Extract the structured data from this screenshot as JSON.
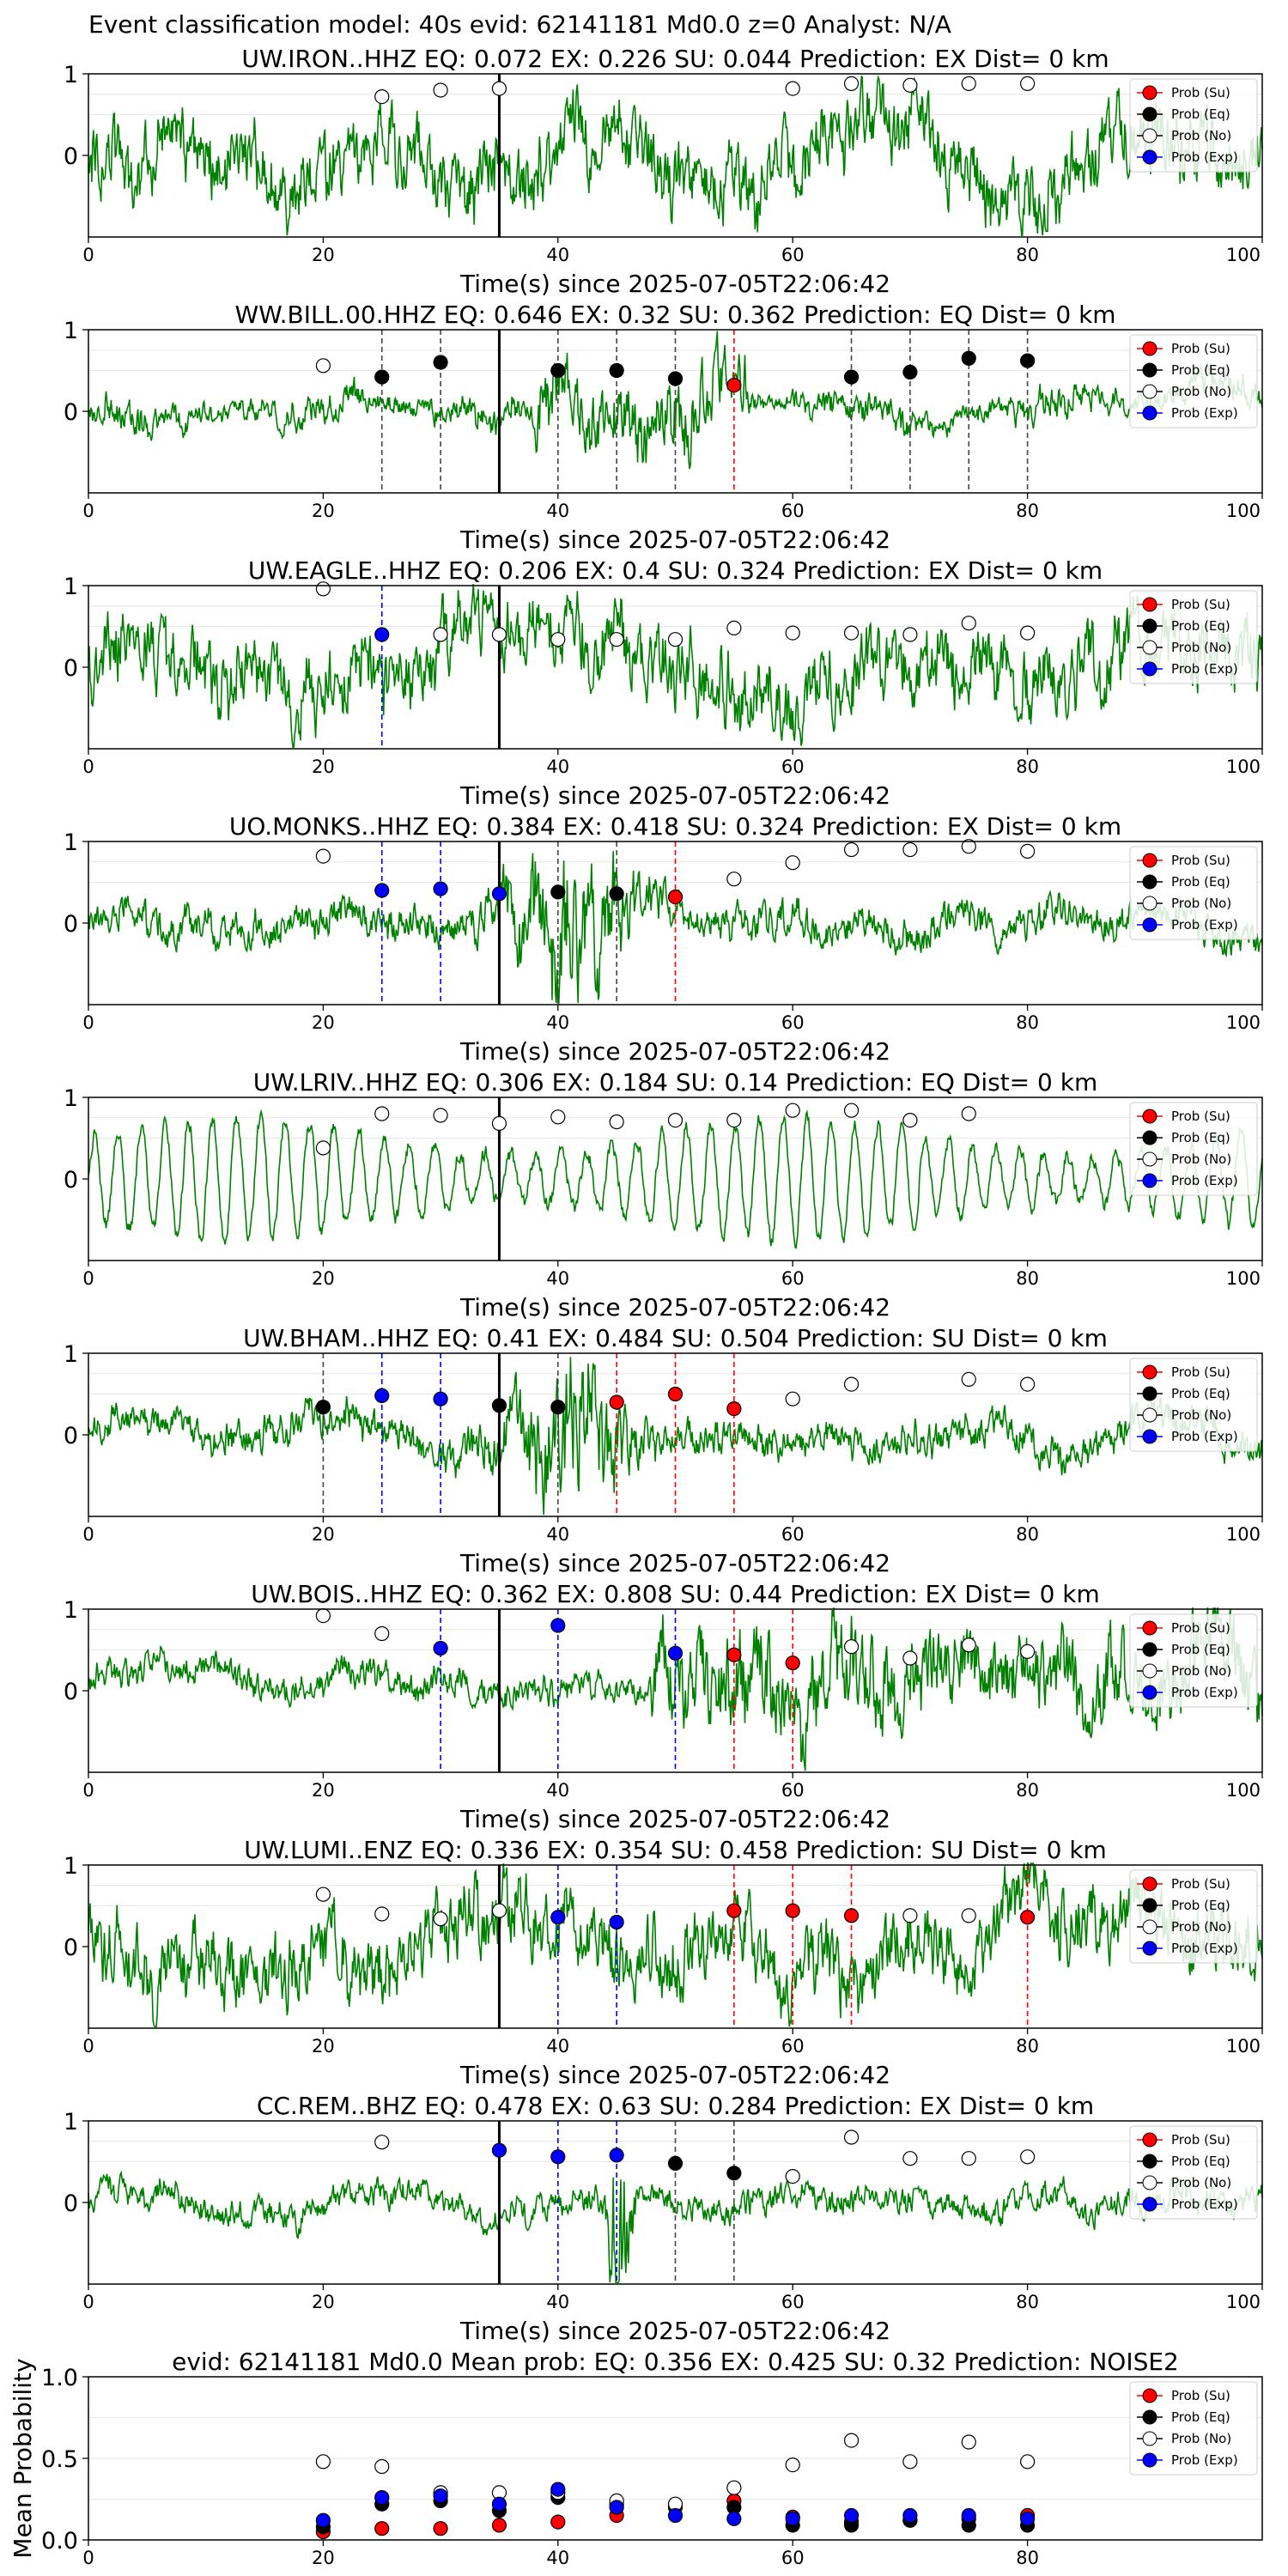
{
  "suptitle": "Event classification model: 40s evid: 62141181 Md0.0 z=0 Analyst: N/A",
  "colors": {
    "trace": "#008000",
    "su": "#ff0000",
    "eq": "#000000",
    "no": "#ffffff",
    "exp": "#0000ff",
    "pick": "#000000"
  },
  "legend": [
    "Prob (Su)",
    "Prob (Eq)",
    "Prob (No)",
    "Prob (Exp)"
  ],
  "chart_data": [
    {
      "type": "line",
      "title": "UW.IRON..HHZ   EQ: 0.072  EX: 0.226  SU: 0.044   Prediction: EX    Dist= 0 km",
      "xlabel": "Time(s) since 2025-07-05T22:06:42",
      "xlim": [
        0,
        100
      ],
      "ylim": [
        -1,
        1
      ],
      "xticks": [
        0,
        20,
        40,
        60,
        80,
        100
      ],
      "yticks": [
        0,
        1
      ],
      "pick": 35,
      "style": "noisy",
      "points": [
        {
          "x": 25,
          "c": "no",
          "y": 0.72
        },
        {
          "x": 30,
          "c": "no",
          "y": 0.8
        },
        {
          "x": 35,
          "c": "no",
          "y": 0.82
        },
        {
          "x": 60,
          "c": "no",
          "y": 0.82
        },
        {
          "x": 65,
          "c": "no",
          "y": 0.88
        },
        {
          "x": 70,
          "c": "no",
          "y": 0.86
        },
        {
          "x": 75,
          "c": "no",
          "y": 0.88
        },
        {
          "x": 80,
          "c": "no",
          "y": 0.88
        }
      ]
    },
    {
      "type": "line",
      "title": "WW.BILL.00.HHZ   EQ: 0.646  EX: 0.32  SU: 0.362   Prediction: EQ    Dist= 0 km",
      "xlabel": "Time(s) since 2025-07-05T22:06:42",
      "xlim": [
        0,
        100
      ],
      "ylim": [
        -1,
        1
      ],
      "xticks": [
        0,
        20,
        40,
        60,
        80,
        100
      ],
      "yticks": [
        0,
        1
      ],
      "pick": 35,
      "style": "quiet",
      "points": [
        {
          "x": 20,
          "c": "no",
          "y": 0.56
        },
        {
          "x": 25,
          "c": "eq",
          "y": 0.42
        },
        {
          "x": 30,
          "c": "eq",
          "y": 0.6
        },
        {
          "x": 40,
          "c": "eq",
          "y": 0.5
        },
        {
          "x": 45,
          "c": "eq",
          "y": 0.5
        },
        {
          "x": 50,
          "c": "eq",
          "y": 0.4
        },
        {
          "x": 55,
          "c": "su",
          "y": 0.32
        },
        {
          "x": 65,
          "c": "eq",
          "y": 0.42
        },
        {
          "x": 70,
          "c": "eq",
          "y": 0.48
        },
        {
          "x": 75,
          "c": "eq",
          "y": 0.65
        },
        {
          "x": 80,
          "c": "eq",
          "y": 0.62
        }
      ]
    },
    {
      "type": "line",
      "title": "UW.EAGLE..HHZ   EQ: 0.206  EX: 0.4  SU: 0.324   Prediction: EX    Dist= 0 km",
      "xlabel": "Time(s) since 2025-07-05T22:06:42",
      "xlim": [
        0,
        100
      ],
      "ylim": [
        -1,
        1
      ],
      "xticks": [
        0,
        20,
        40,
        60,
        80,
        100
      ],
      "yticks": [
        0,
        1
      ],
      "pick": 35,
      "style": "noisy",
      "points": [
        {
          "x": 20,
          "c": "no",
          "y": 0.96
        },
        {
          "x": 25,
          "c": "exp",
          "y": 0.4
        },
        {
          "x": 30,
          "c": "no",
          "y": 0.4
        },
        {
          "x": 35,
          "c": "no",
          "y": 0.4
        },
        {
          "x": 40,
          "c": "no",
          "y": 0.34
        },
        {
          "x": 45,
          "c": "no",
          "y": 0.34
        },
        {
          "x": 50,
          "c": "no",
          "y": 0.34
        },
        {
          "x": 55,
          "c": "no",
          "y": 0.48
        },
        {
          "x": 60,
          "c": "no",
          "y": 0.42
        },
        {
          "x": 65,
          "c": "no",
          "y": 0.42
        },
        {
          "x": 70,
          "c": "no",
          "y": 0.4
        },
        {
          "x": 75,
          "c": "no",
          "y": 0.54
        },
        {
          "x": 80,
          "c": "no",
          "y": 0.42
        }
      ]
    },
    {
      "type": "line",
      "title": "UO.MONKS..HHZ   EQ: 0.384  EX: 0.418  SU: 0.324   Prediction: EX    Dist= 0 km",
      "xlabel": "Time(s) since 2025-07-05T22:06:42",
      "xlim": [
        0,
        100
      ],
      "ylim": [
        -1,
        1
      ],
      "xticks": [
        0,
        20,
        40,
        60,
        80,
        100
      ],
      "yticks": [
        0,
        1
      ],
      "pick": 35,
      "style": "burst",
      "points": [
        {
          "x": 20,
          "c": "no",
          "y": 0.82
        },
        {
          "x": 25,
          "c": "exp",
          "y": 0.4
        },
        {
          "x": 30,
          "c": "exp",
          "y": 0.42
        },
        {
          "x": 35,
          "c": "exp",
          "y": 0.36
        },
        {
          "x": 40,
          "c": "eq",
          "y": 0.38
        },
        {
          "x": 45,
          "c": "eq",
          "y": 0.36
        },
        {
          "x": 50,
          "c": "su",
          "y": 0.32
        },
        {
          "x": 55,
          "c": "no",
          "y": 0.54
        },
        {
          "x": 60,
          "c": "no",
          "y": 0.74
        },
        {
          "x": 65,
          "c": "no",
          "y": 0.9
        },
        {
          "x": 70,
          "c": "no",
          "y": 0.9
        },
        {
          "x": 75,
          "c": "no",
          "y": 0.94
        },
        {
          "x": 80,
          "c": "no",
          "y": 0.88
        }
      ]
    },
    {
      "type": "line",
      "title": "UW.LRIV..HHZ   EQ: 0.306  EX: 0.184  SU: 0.14   Prediction: EQ    Dist= 0 km",
      "xlabel": "Time(s) since 2025-07-05T22:06:42",
      "xlim": [
        0,
        100
      ],
      "ylim": [
        -1,
        1
      ],
      "xticks": [
        0,
        20,
        40,
        60,
        80,
        100
      ],
      "yticks": [
        0,
        1
      ],
      "pick": 35,
      "style": "swell",
      "points": [
        {
          "x": 20,
          "c": "no",
          "y": 0.38
        },
        {
          "x": 25,
          "c": "no",
          "y": 0.8
        },
        {
          "x": 30,
          "c": "no",
          "y": 0.78
        },
        {
          "x": 35,
          "c": "no",
          "y": 0.68
        },
        {
          "x": 40,
          "c": "no",
          "y": 0.76
        },
        {
          "x": 45,
          "c": "no",
          "y": 0.7
        },
        {
          "x": 50,
          "c": "no",
          "y": 0.72
        },
        {
          "x": 55,
          "c": "no",
          "y": 0.72
        },
        {
          "x": 60,
          "c": "no",
          "y": 0.84
        },
        {
          "x": 65,
          "c": "no",
          "y": 0.84
        },
        {
          "x": 70,
          "c": "no",
          "y": 0.72
        },
        {
          "x": 75,
          "c": "no",
          "y": 0.8
        }
      ]
    },
    {
      "type": "line",
      "title": "UW.BHAM..HHZ   EQ: 0.41  EX: 0.484  SU: 0.504   Prediction: SU    Dist= 0 km",
      "xlabel": "Time(s) since 2025-07-05T22:06:42",
      "xlim": [
        0,
        100
      ],
      "ylim": [
        -1,
        1
      ],
      "xticks": [
        0,
        20,
        40,
        60,
        80,
        100
      ],
      "yticks": [
        0,
        1
      ],
      "pick": 35,
      "style": "burst",
      "points": [
        {
          "x": 20,
          "c": "eq",
          "y": 0.34
        },
        {
          "x": 25,
          "c": "exp",
          "y": 0.48
        },
        {
          "x": 30,
          "c": "exp",
          "y": 0.44
        },
        {
          "x": 35,
          "c": "eq",
          "y": 0.36
        },
        {
          "x": 40,
          "c": "eq",
          "y": 0.34
        },
        {
          "x": 45,
          "c": "su",
          "y": 0.4
        },
        {
          "x": 50,
          "c": "su",
          "y": 0.5
        },
        {
          "x": 55,
          "c": "su",
          "y": 0.32
        },
        {
          "x": 60,
          "c": "no",
          "y": 0.44
        },
        {
          "x": 65,
          "c": "no",
          "y": 0.62
        },
        {
          "x": 75,
          "c": "no",
          "y": 0.68
        },
        {
          "x": 80,
          "c": "no",
          "y": 0.62
        }
      ]
    },
    {
      "type": "line",
      "title": "UW.BOIS..HHZ   EQ: 0.362  EX: 0.808  SU: 0.44   Prediction: EX    Dist= 0 km",
      "xlabel": "Time(s) since 2025-07-05T22:06:42",
      "xlim": [
        0,
        100
      ],
      "ylim": [
        -1,
        1
      ],
      "xticks": [
        0,
        20,
        40,
        60,
        80,
        100
      ],
      "yticks": [
        0,
        1
      ],
      "pick": 35,
      "style": "late",
      "points": [
        {
          "x": 20,
          "c": "no",
          "y": 0.92
        },
        {
          "x": 25,
          "c": "no",
          "y": 0.7
        },
        {
          "x": 30,
          "c": "exp",
          "y": 0.52
        },
        {
          "x": 40,
          "c": "exp",
          "y": 0.8
        },
        {
          "x": 50,
          "c": "exp",
          "y": 0.46
        },
        {
          "x": 55,
          "c": "su",
          "y": 0.44
        },
        {
          "x": 60,
          "c": "su",
          "y": 0.34
        },
        {
          "x": 65,
          "c": "no",
          "y": 0.54
        },
        {
          "x": 70,
          "c": "no",
          "y": 0.4
        },
        {
          "x": 75,
          "c": "no",
          "y": 0.56
        },
        {
          "x": 80,
          "c": "no",
          "y": 0.48
        }
      ]
    },
    {
      "type": "line",
      "title": "UW.LUMI..ENZ   EQ: 0.336  EX: 0.354  SU: 0.458   Prediction: SU    Dist= 0 km",
      "xlabel": "Time(s) since 2025-07-05T22:06:42",
      "xlim": [
        0,
        100
      ],
      "ylim": [
        -1,
        1
      ],
      "xticks": [
        0,
        20,
        40,
        60,
        80,
        100
      ],
      "yticks": [
        0,
        1
      ],
      "pick": 35,
      "style": "noisy",
      "points": [
        {
          "x": 20,
          "c": "no",
          "y": 0.64
        },
        {
          "x": 25,
          "c": "no",
          "y": 0.4
        },
        {
          "x": 30,
          "c": "no",
          "y": 0.34
        },
        {
          "x": 35,
          "c": "no",
          "y": 0.44
        },
        {
          "x": 40,
          "c": "exp",
          "y": 0.36
        },
        {
          "x": 45,
          "c": "exp",
          "y": 0.3
        },
        {
          "x": 55,
          "c": "su",
          "y": 0.44
        },
        {
          "x": 60,
          "c": "su",
          "y": 0.44
        },
        {
          "x": 65,
          "c": "su",
          "y": 0.38
        },
        {
          "x": 70,
          "c": "no",
          "y": 0.38
        },
        {
          "x": 75,
          "c": "no",
          "y": 0.38
        },
        {
          "x": 80,
          "c": "su",
          "y": 0.36
        }
      ]
    },
    {
      "type": "line",
      "title": "CC.REM..BHZ   EQ: 0.478  EX: 0.63  SU: 0.284   Prediction: EX    Dist= 0 km",
      "xlabel": "Time(s) since 2025-07-05T22:06:42",
      "xlim": [
        0,
        100
      ],
      "ylim": [
        -1,
        1
      ],
      "xticks": [
        0,
        20,
        40,
        60,
        80,
        100
      ],
      "yticks": [
        0,
        1
      ],
      "pick": 35,
      "style": "spike",
      "points": [
        {
          "x": 25,
          "c": "no",
          "y": 0.74
        },
        {
          "x": 35,
          "c": "exp",
          "y": 0.64
        },
        {
          "x": 40,
          "c": "exp",
          "y": 0.56
        },
        {
          "x": 45,
          "c": "exp",
          "y": 0.58
        },
        {
          "x": 50,
          "c": "eq",
          "y": 0.48
        },
        {
          "x": 55,
          "c": "eq",
          "y": 0.36
        },
        {
          "x": 60,
          "c": "no",
          "y": 0.32
        },
        {
          "x": 65,
          "c": "no",
          "y": 0.8
        },
        {
          "x": 70,
          "c": "no",
          "y": 0.54
        },
        {
          "x": 75,
          "c": "no",
          "y": 0.54
        },
        {
          "x": 80,
          "c": "no",
          "y": 0.56
        }
      ]
    },
    {
      "type": "scatter",
      "title": "evid: 62141181  Md0.0   Mean prob:   EQ: 0.356  EX: 0.425  SU: 0.32   Prediction: NOISE2",
      "ylabel": "Mean Probability",
      "xlim": [
        0,
        100
      ],
      "ylim": [
        0,
        1
      ],
      "xticks": [
        0,
        20,
        40,
        60,
        80
      ],
      "yticks": [
        "0.0",
        "0.5",
        "1.0"
      ],
      "series": [
        {
          "name": "Prob (Su)",
          "c": "su",
          "x": [
            20,
            25,
            30,
            35,
            40,
            45,
            50,
            55,
            60,
            65,
            70,
            75,
            80
          ],
          "values": [
            0.05,
            0.07,
            0.07,
            0.09,
            0.11,
            0.15,
            0.2,
            0.24,
            0.14,
            0.11,
            0.12,
            0.13,
            0.15
          ]
        },
        {
          "name": "Prob (Eq)",
          "c": "eq",
          "x": [
            20,
            25,
            30,
            35,
            40,
            45,
            50,
            55,
            60,
            65,
            70,
            75,
            80
          ],
          "values": [
            0.08,
            0.22,
            0.24,
            0.18,
            0.26,
            0.22,
            0.21,
            0.2,
            0.09,
            0.09,
            0.12,
            0.09,
            0.09
          ]
        },
        {
          "name": "Prob (No)",
          "c": "no",
          "x": [
            20,
            25,
            30,
            35,
            40,
            45,
            50,
            55,
            60,
            65,
            70,
            75,
            80
          ],
          "values": [
            0.48,
            0.45,
            0.29,
            0.29,
            0.29,
            0.24,
            0.22,
            0.32,
            0.46,
            0.61,
            0.48,
            0.6,
            0.48
          ]
        },
        {
          "name": "Prob (Exp)",
          "c": "exp",
          "x": [
            20,
            25,
            30,
            35,
            40,
            45,
            50,
            55,
            60,
            65,
            70,
            75,
            80
          ],
          "values": [
            0.12,
            0.26,
            0.27,
            0.22,
            0.31,
            0.2,
            0.15,
            0.13,
            0.13,
            0.15,
            0.15,
            0.15,
            0.13
          ]
        }
      ]
    }
  ]
}
